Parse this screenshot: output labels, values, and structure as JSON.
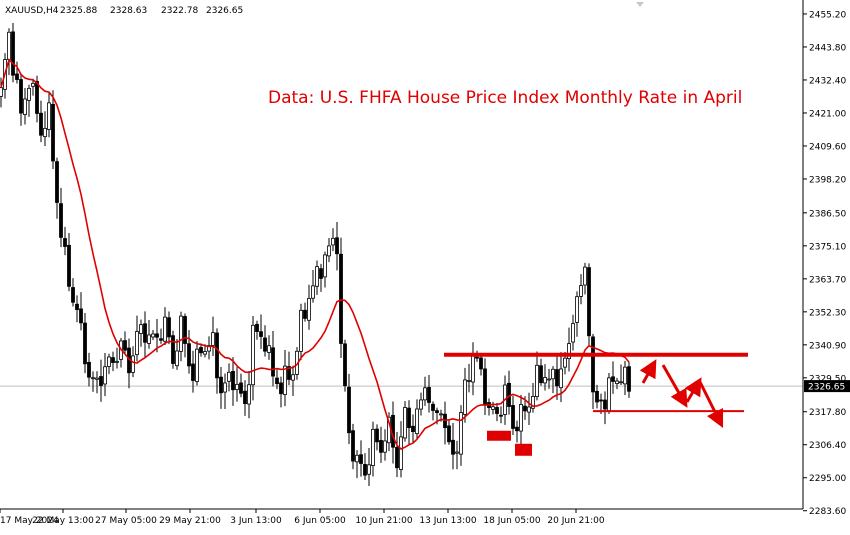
{
  "header": {
    "symbol": "XAUUSD,H4",
    "open": "2325.88",
    "high": "2328.63",
    "low": "2322.78",
    "close": "2326.65"
  },
  "annotation": "Data: U.S. FHFA House Price Index Monthly Rate in April",
  "colors": {
    "background": "#ffffff",
    "candles": "#000000",
    "moving_average": "#e00000",
    "annotation": "#e00000",
    "price_line": "#c0c0c0"
  },
  "chart_data": {
    "type": "candlestick",
    "title": "XAUUSD,H4",
    "ylim": [
      2280.0,
      2458.0
    ],
    "y_ticks": [
      "2455.20",
      "2443.80",
      "2432.40",
      "2421.00",
      "2409.60",
      "2398.20",
      "2386.50",
      "2375.10",
      "2363.70",
      "2352.30",
      "2340.90",
      "2329.50",
      "2317.80",
      "2306.40",
      "2295.00",
      "2283.60"
    ],
    "x_ticks": [
      "17 May 2024",
      "22 May 13:00",
      "27 May 05:00",
      "29 May 21:00",
      "3 Jun 13:00",
      "6 Jun 05:00",
      "10 Jun 21:00",
      "13 Jun 13:00",
      "18 Jun 05:00",
      "20 Jun 21:00"
    ],
    "current_price": "2326.65",
    "anchors": [
      {
        "i": 0,
        "p": 2428
      },
      {
        "i": 2,
        "p": 2448
      },
      {
        "i": 5,
        "p": 2420
      },
      {
        "i": 7,
        "p": 2433
      },
      {
        "i": 10,
        "p": 2415
      },
      {
        "i": 12,
        "p": 2420
      },
      {
        "i": 15,
        "p": 2378
      },
      {
        "i": 18,
        "p": 2357
      },
      {
        "i": 20,
        "p": 2346
      },
      {
        "i": 22,
        "p": 2330
      },
      {
        "i": 23,
        "p": 2327
      },
      {
        "i": 27,
        "p": 2334
      },
      {
        "i": 30,
        "p": 2340
      },
      {
        "i": 32,
        "p": 2334
      },
      {
        "i": 35,
        "p": 2347
      },
      {
        "i": 38,
        "p": 2342
      },
      {
        "i": 41,
        "p": 2348
      },
      {
        "i": 43,
        "p": 2336
      },
      {
        "i": 45,
        "p": 2347
      },
      {
        "i": 48,
        "p": 2330
      },
      {
        "i": 50,
        "p": 2340
      },
      {
        "i": 53,
        "p": 2341
      },
      {
        "i": 55,
        "p": 2325
      },
      {
        "i": 58,
        "p": 2330
      },
      {
        "i": 61,
        "p": 2319
      },
      {
        "i": 63,
        "p": 2345
      },
      {
        "i": 66,
        "p": 2343
      },
      {
        "i": 68,
        "p": 2330
      },
      {
        "i": 70,
        "p": 2327
      },
      {
        "i": 73,
        "p": 2332
      },
      {
        "i": 75,
        "p": 2348
      },
      {
        "i": 77,
        "p": 2358
      },
      {
        "i": 79,
        "p": 2364
      },
      {
        "i": 81,
        "p": 2372
      },
      {
        "i": 84,
        "p": 2377
      },
      {
        "i": 85,
        "p": 2340
      },
      {
        "i": 87,
        "p": 2310
      },
      {
        "i": 89,
        "p": 2300
      },
      {
        "i": 91,
        "p": 2297
      },
      {
        "i": 93,
        "p": 2308
      },
      {
        "i": 95,
        "p": 2306
      },
      {
        "i": 97,
        "p": 2312
      },
      {
        "i": 99,
        "p": 2301
      },
      {
        "i": 101,
        "p": 2316
      },
      {
        "i": 103,
        "p": 2313
      },
      {
        "i": 105,
        "p": 2320
      },
      {
        "i": 106,
        "p": 2329
      },
      {
        "i": 108,
        "p": 2315
      },
      {
        "i": 110,
        "p": 2320
      },
      {
        "i": 112,
        "p": 2304
      },
      {
        "i": 114,
        "p": 2306
      },
      {
        "i": 116,
        "p": 2326
      },
      {
        "i": 118,
        "p": 2338
      },
      {
        "i": 120,
        "p": 2331
      },
      {
        "i": 122,
        "p": 2318
      },
      {
        "i": 124,
        "p": 2317
      },
      {
        "i": 126,
        "p": 2324
      },
      {
        "i": 128,
        "p": 2313
      },
      {
        "i": 130,
        "p": 2316
      },
      {
        "i": 132,
        "p": 2321
      },
      {
        "i": 134,
        "p": 2329
      },
      {
        "i": 136,
        "p": 2331
      },
      {
        "i": 138,
        "p": 2328
      },
      {
        "i": 140,
        "p": 2333
      },
      {
        "i": 142,
        "p": 2338
      },
      {
        "i": 143,
        "p": 2353
      },
      {
        "i": 145,
        "p": 2360
      },
      {
        "i": 146,
        "p": 2366
      },
      {
        "i": 147,
        "p": 2349
      },
      {
        "i": 148,
        "p": 2322
      },
      {
        "i": 149,
        "p": 2320
      },
      {
        "i": 151,
        "p": 2323
      },
      {
        "i": 153,
        "p": 2328
      },
      {
        "i": 155,
        "p": 2331
      },
      {
        "i": 157,
        "p": 2326
      }
    ],
    "resistance_level": 2337.5,
    "support_level": 2318.0,
    "support_markers": [
      2309.5,
      2305.0
    ]
  }
}
